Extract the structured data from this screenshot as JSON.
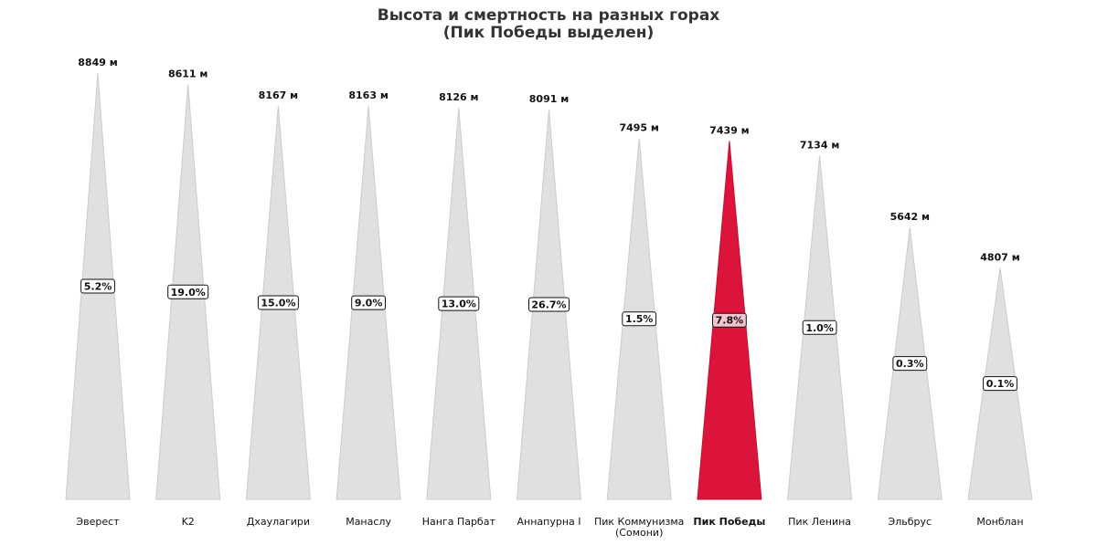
{
  "chart_data": {
    "type": "bar",
    "title": "Высота и смертность на разных горах",
    "subtitle": "(Пик Победы выделен)",
    "height_unit": "м",
    "categories": [
      [
        "Эверест"
      ],
      [
        "K2"
      ],
      [
        "Дхаулагири"
      ],
      [
        "Манаслу"
      ],
      [
        "Нанга Парбат"
      ],
      [
        "Аннапурна I"
      ],
      [
        "Пик Коммунизма",
        "(Сомони)"
      ],
      [
        "Пик Победы"
      ],
      [
        "Пик Ленина"
      ],
      [
        "Эльбрус"
      ],
      [
        "Монблан"
      ]
    ],
    "series": [
      {
        "values": [
          8849,
          8611,
          8167,
          8163,
          8126,
          8091,
          7495,
          7439,
          7134,
          5642,
          4807
        ]
      },
      {
        "values": [
          5.2,
          19.0,
          15.0,
          9.0,
          13.0,
          26.7,
          1.5,
          7.8,
          1.0,
          0.3,
          0.1
        ]
      }
    ],
    "value_format": [
      "{v} м",
      "{v}%"
    ],
    "highlight_index": 7,
    "ylim": [
      0,
      9000
    ],
    "grid": false,
    "colors": {
      "default": "#e0e0e0",
      "default_edge": "#cccccc",
      "highlight": "#dc143c",
      "highlight_edge": "#c01030",
      "label_box_fill": "#ffffff",
      "label_box_fill_highlight": "#f3c6cf",
      "label_box_stroke": "#111111",
      "highlight_text": "#dc143c"
    }
  }
}
